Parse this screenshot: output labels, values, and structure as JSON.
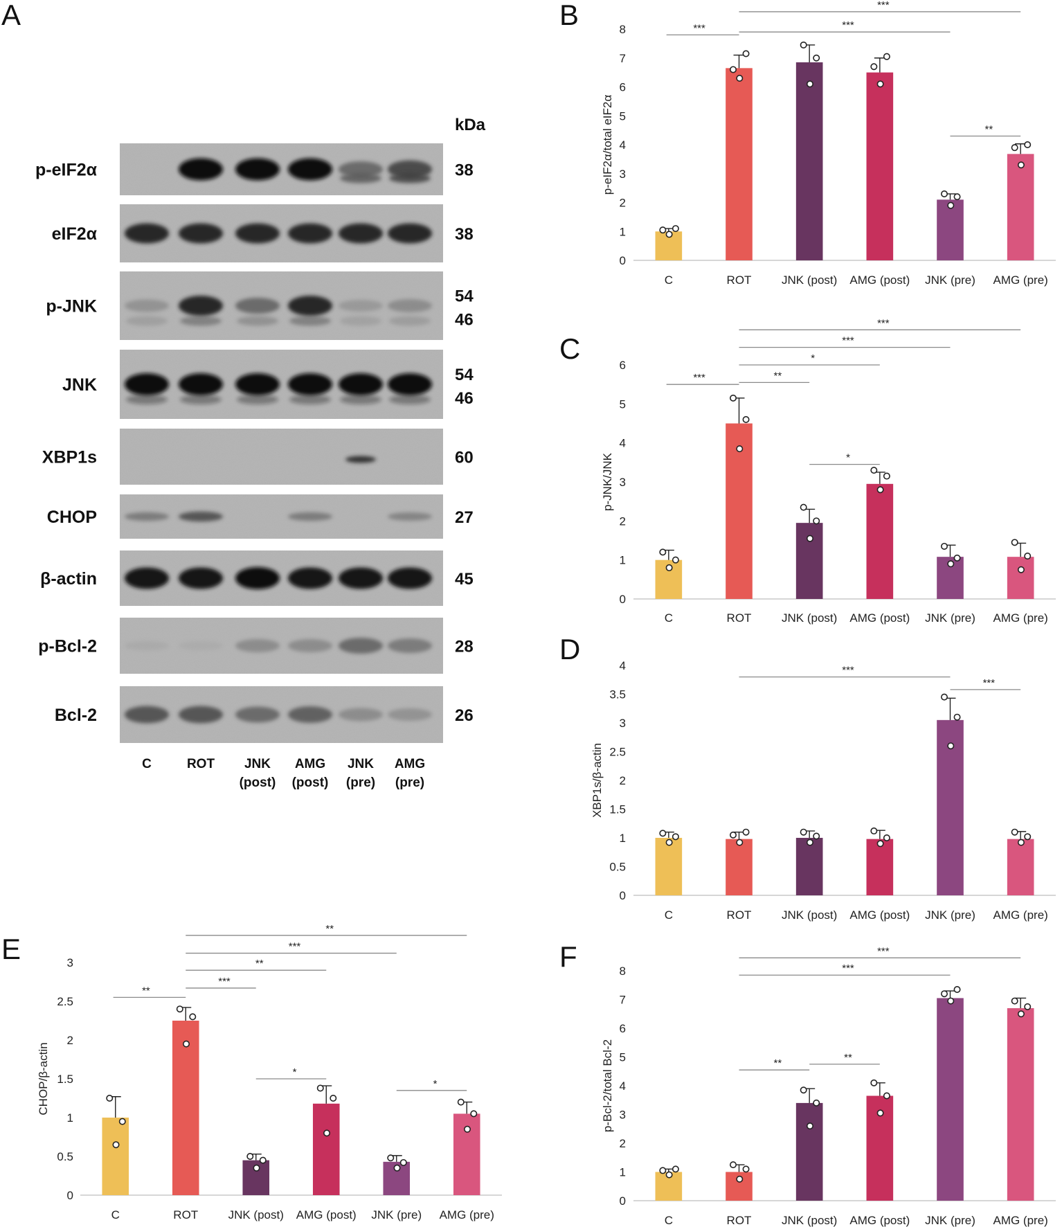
{
  "colors": {
    "C": "#EEBF57",
    "ROT": "#E65A55",
    "JNK (post)": "#683560",
    "AMG (post)": "#C6305C",
    "JNK (pre)": "#8C4780",
    "AMG (pre)": "#D9567E",
    "axis": "#c8c8c8",
    "bracket": "#8a8a8a",
    "band": "#1a1a1a"
  },
  "blot": {
    "letter": "A",
    "kda_header": "kDa",
    "lanes": [
      "C",
      "ROT",
      "JNK (post)",
      "AMG (post)",
      "JNK (pre)",
      "AMG (pre)"
    ],
    "lane_labels": [
      [
        "C"
      ],
      [
        "ROT"
      ],
      [
        "JNK",
        "(post)"
      ],
      [
        "AMG",
        "(post)"
      ],
      [
        "JNK",
        "(pre)"
      ],
      [
        "AMG",
        "(pre)"
      ]
    ],
    "rows": [
      {
        "label": "p-eIF2α",
        "kda": [
          "38"
        ],
        "intensity": [
          0,
          1,
          1,
          1,
          0.55,
          0.7
        ]
      },
      {
        "label": "eIF2α",
        "kda": [
          "38"
        ],
        "intensity": [
          0.85,
          0.85,
          0.85,
          0.85,
          0.85,
          0.85
        ]
      },
      {
        "label": "p-JNK",
        "kda": [
          "54",
          "46"
        ],
        "intensity": [
          0.3,
          0.85,
          0.55,
          0.85,
          0.25,
          0.35
        ]
      },
      {
        "label": "JNK",
        "kda": [
          "54",
          "46"
        ],
        "intensity": [
          1,
          1,
          1,
          1,
          1,
          1
        ]
      },
      {
        "label": "XBP1s",
        "kda": [
          "60"
        ],
        "intensity": [
          0,
          0,
          0,
          0,
          0.8,
          0
        ]
      },
      {
        "label": "CHOP",
        "kda": [
          "27"
        ],
        "intensity": [
          0.45,
          0.65,
          0,
          0.45,
          0,
          0.4
        ]
      },
      {
        "label": "β-actin",
        "kda": [
          "45"
        ],
        "intensity": [
          0.95,
          0.95,
          1,
          0.95,
          0.95,
          0.95
        ]
      },
      {
        "label": "p-Bcl-2",
        "kda": [
          "28"
        ],
        "intensity": [
          0.08,
          0.06,
          0.35,
          0.35,
          0.55,
          0.45
        ]
      },
      {
        "label": "Bcl-2",
        "kda": [
          "26"
        ],
        "intensity": [
          0.65,
          0.65,
          0.55,
          0.6,
          0.35,
          0.3
        ]
      }
    ]
  },
  "chart_data": [
    {
      "letter": "B",
      "type": "bar",
      "ylabel": "p-eIF2α/total eIF2α",
      "categories": [
        "C",
        "ROT",
        "JNK (post)",
        "AMG (post)",
        "JNK (pre)",
        "AMG (pre)"
      ],
      "values": [
        1.0,
        6.65,
        6.85,
        6.5,
        2.1,
        3.68
      ],
      "errors": [
        0.1,
        0.45,
        0.6,
        0.5,
        0.2,
        0.35
      ],
      "points": [
        [
          1.05,
          0.9,
          1.1
        ],
        [
          6.6,
          6.3,
          7.15
        ],
        [
          7.45,
          6.1,
          7.0
        ],
        [
          6.7,
          6.1,
          7.05
        ],
        [
          2.3,
          1.9,
          2.2
        ],
        [
          3.9,
          3.3,
          4.0
        ]
      ],
      "ylim": [
        0,
        8
      ],
      "yticks": [
        0,
        1,
        2,
        3,
        4,
        5,
        6,
        7,
        8
      ],
      "significance": [
        {
          "from": "C",
          "to": "ROT",
          "label": "***",
          "y": 7.8
        },
        {
          "from": "ROT",
          "to": "JNK (pre)",
          "label": "***",
          "y": 7.9
        },
        {
          "from": "ROT",
          "to": "AMG (pre)",
          "label": "***",
          "y": 8.6
        },
        {
          "from": "JNK (pre)",
          "to": "AMG (pre)",
          "label": "**",
          "y": 4.3
        }
      ]
    },
    {
      "letter": "C",
      "type": "bar",
      "ylabel": "p-JNK/JNK",
      "categories": [
        "C",
        "ROT",
        "JNK (post)",
        "AMG (post)",
        "JNK (pre)",
        "AMG (pre)"
      ],
      "values": [
        1.0,
        4.5,
        1.95,
        2.95,
        1.08,
        1.08
      ],
      "errors": [
        0.25,
        0.65,
        0.35,
        0.3,
        0.3,
        0.35
      ],
      "points": [
        [
          1.2,
          0.8,
          1.0
        ],
        [
          5.15,
          3.85,
          4.6
        ],
        [
          2.35,
          1.55,
          2.0
        ],
        [
          3.3,
          2.8,
          3.15
        ],
        [
          1.35,
          0.9,
          1.05
        ],
        [
          1.45,
          0.75,
          1.1
        ]
      ],
      "ylim": [
        0,
        6
      ],
      "yticks": [
        0,
        1,
        2,
        3,
        4,
        5,
        6
      ],
      "significance": [
        {
          "from": "C",
          "to": "ROT",
          "label": "***",
          "y": 5.5
        },
        {
          "from": "ROT",
          "to": "JNK (post)",
          "label": "**",
          "y": 5.55
        },
        {
          "from": "ROT",
          "to": "AMG (post)",
          "label": "*",
          "y": 6.0
        },
        {
          "from": "ROT",
          "to": "JNK (pre)",
          "label": "***",
          "y": 6.45
        },
        {
          "from": "ROT",
          "to": "AMG (pre)",
          "label": "***",
          "y": 6.9
        },
        {
          "from": "JNK (post)",
          "to": "AMG (post)",
          "label": "*",
          "y": 3.45
        }
      ]
    },
    {
      "letter": "D",
      "type": "bar",
      "ylabel": "XBP1s/β-actin",
      "categories": [
        "C",
        "ROT",
        "JNK (post)",
        "AMG (post)",
        "JNK (pre)",
        "AMG (pre)"
      ],
      "values": [
        1.0,
        0.98,
        1.0,
        0.98,
        3.05,
        0.98
      ],
      "errors": [
        0.1,
        0.12,
        0.12,
        0.15,
        0.38,
        0.13
      ],
      "points": [
        [
          1.08,
          0.92,
          1.02
        ],
        [
          1.05,
          0.92,
          1.1
        ],
        [
          1.1,
          0.92,
          1.03
        ],
        [
          1.12,
          0.9,
          1.0
        ],
        [
          3.45,
          2.6,
          3.1
        ],
        [
          1.1,
          0.92,
          1.02
        ]
      ],
      "ylim": [
        0,
        4
      ],
      "yticks": [
        0,
        0.5,
        1,
        1.5,
        2,
        2.5,
        3,
        3.5,
        4
      ],
      "significance": [
        {
          "from": "ROT",
          "to": "JNK (pre)",
          "label": "***",
          "y": 3.8
        },
        {
          "from": "JNK (pre)",
          "to": "AMG (pre)",
          "label": "***",
          "y": 3.58
        }
      ]
    },
    {
      "letter": "E",
      "type": "bar",
      "ylabel": "CHOP/β-actin",
      "categories": [
        "C",
        "ROT",
        "JNK (post)",
        "AMG (post)",
        "JNK (pre)",
        "AMG (pre)"
      ],
      "values": [
        1.0,
        2.25,
        0.45,
        1.18,
        0.43,
        1.05
      ],
      "errors": [
        0.27,
        0.17,
        0.08,
        0.23,
        0.08,
        0.15
      ],
      "points": [
        [
          1.25,
          0.65,
          0.95
        ],
        [
          2.4,
          1.95,
          2.3
        ],
        [
          0.5,
          0.35,
          0.45
        ],
        [
          1.38,
          0.8,
          1.25
        ],
        [
          0.48,
          0.35,
          0.42
        ],
        [
          1.2,
          0.85,
          1.05
        ]
      ],
      "ylim": [
        0,
        3
      ],
      "yticks": [
        0,
        0.5,
        1,
        1.5,
        2,
        2.5,
        3
      ],
      "significance": [
        {
          "from": "C",
          "to": "ROT",
          "label": "**",
          "y": 2.55
        },
        {
          "from": "ROT",
          "to": "JNK (post)",
          "label": "***",
          "y": 2.67
        },
        {
          "from": "ROT",
          "to": "AMG (post)",
          "label": "**",
          "y": 2.9
        },
        {
          "from": "ROT",
          "to": "JNK (pre)",
          "label": "***",
          "y": 3.12
        },
        {
          "from": "ROT",
          "to": "AMG (pre)",
          "label": "**",
          "y": 3.35
        },
        {
          "from": "JNK (post)",
          "to": "AMG (post)",
          "label": "*",
          "y": 1.5
        },
        {
          "from": "JNK (pre)",
          "to": "AMG (pre)",
          "label": "*",
          "y": 1.35
        }
      ]
    },
    {
      "letter": "F",
      "type": "bar",
      "ylabel": "p-Bcl-2/total Bcl-2",
      "categories": [
        "C",
        "ROT",
        "JNK (post)",
        "AMG (post)",
        "JNK (pre)",
        "AMG (pre)"
      ],
      "values": [
        1.0,
        1.0,
        3.4,
        3.65,
        7.05,
        6.7
      ],
      "errors": [
        0.1,
        0.25,
        0.5,
        0.45,
        0.25,
        0.35
      ],
      "points": [
        [
          1.05,
          0.9,
          1.1
        ],
        [
          1.25,
          0.75,
          1.1
        ],
        [
          3.85,
          2.6,
          3.4
        ],
        [
          4.1,
          3.05,
          3.65
        ],
        [
          7.2,
          6.95,
          7.35
        ],
        [
          6.95,
          6.5,
          6.75
        ]
      ],
      "ylim": [
        0,
        8
      ],
      "yticks": [
        0,
        1,
        2,
        3,
        4,
        5,
        6,
        7,
        8
      ],
      "significance": [
        {
          "from": "ROT",
          "to": "JNK (post)",
          "label": "**",
          "y": 4.55
        },
        {
          "from": "JNK (post)",
          "to": "AMG (post)",
          "label": "**",
          "y": 4.75
        },
        {
          "from": "ROT",
          "to": "JNK (pre)",
          "label": "***",
          "y": 7.85
        },
        {
          "from": "ROT",
          "to": "AMG (pre)",
          "label": "***",
          "y": 8.45
        }
      ]
    }
  ]
}
